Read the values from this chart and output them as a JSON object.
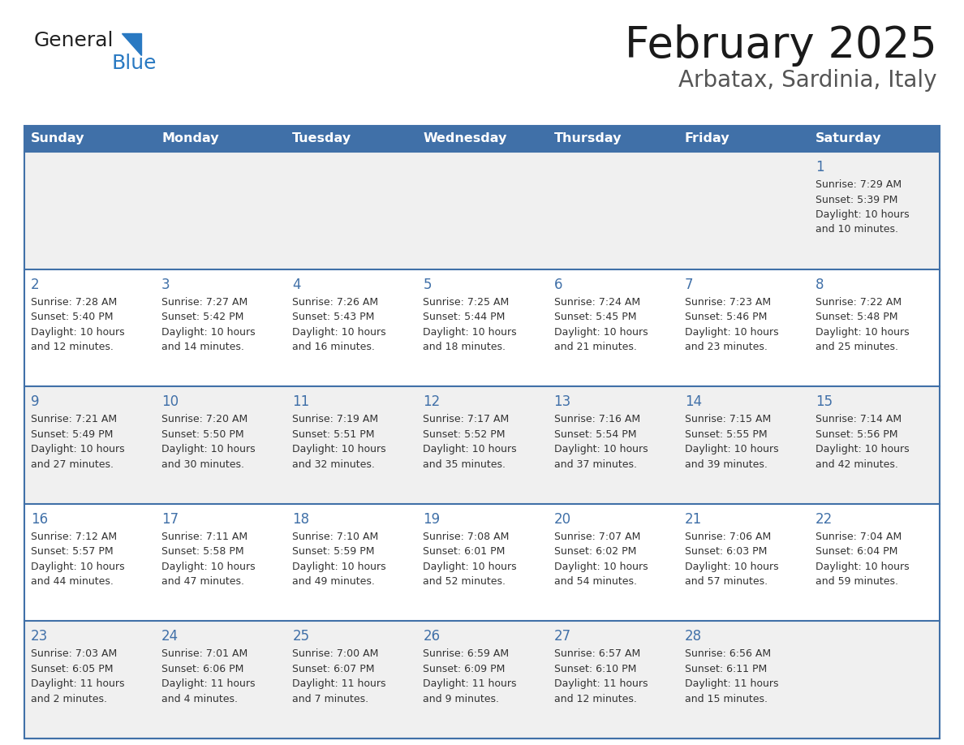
{
  "title": "February 2025",
  "subtitle": "Arbatax, Sardinia, Italy",
  "header_bg": "#4070A8",
  "header_text_color": "#FFFFFF",
  "day_headers": [
    "Sunday",
    "Monday",
    "Tuesday",
    "Wednesday",
    "Thursday",
    "Friday",
    "Saturday"
  ],
  "row_bg_odd": "#F0F0F0",
  "row_bg_even": "#FFFFFF",
  "border_color": "#4070A8",
  "text_color": "#333333",
  "num_color": "#4070A8",
  "days": [
    {
      "day": 1,
      "col": 6,
      "row": 0,
      "sunrise": "7:29 AM",
      "sunset": "5:39 PM",
      "daylight_hours": 10,
      "daylight_minutes": 10
    },
    {
      "day": 2,
      "col": 0,
      "row": 1,
      "sunrise": "7:28 AM",
      "sunset": "5:40 PM",
      "daylight_hours": 10,
      "daylight_minutes": 12
    },
    {
      "day": 3,
      "col": 1,
      "row": 1,
      "sunrise": "7:27 AM",
      "sunset": "5:42 PM",
      "daylight_hours": 10,
      "daylight_minutes": 14
    },
    {
      "day": 4,
      "col": 2,
      "row": 1,
      "sunrise": "7:26 AM",
      "sunset": "5:43 PM",
      "daylight_hours": 10,
      "daylight_minutes": 16
    },
    {
      "day": 5,
      "col": 3,
      "row": 1,
      "sunrise": "7:25 AM",
      "sunset": "5:44 PM",
      "daylight_hours": 10,
      "daylight_minutes": 18
    },
    {
      "day": 6,
      "col": 4,
      "row": 1,
      "sunrise": "7:24 AM",
      "sunset": "5:45 PM",
      "daylight_hours": 10,
      "daylight_minutes": 21
    },
    {
      "day": 7,
      "col": 5,
      "row": 1,
      "sunrise": "7:23 AM",
      "sunset": "5:46 PM",
      "daylight_hours": 10,
      "daylight_minutes": 23
    },
    {
      "day": 8,
      "col": 6,
      "row": 1,
      "sunrise": "7:22 AM",
      "sunset": "5:48 PM",
      "daylight_hours": 10,
      "daylight_minutes": 25
    },
    {
      "day": 9,
      "col": 0,
      "row": 2,
      "sunrise": "7:21 AM",
      "sunset": "5:49 PM",
      "daylight_hours": 10,
      "daylight_minutes": 27
    },
    {
      "day": 10,
      "col": 1,
      "row": 2,
      "sunrise": "7:20 AM",
      "sunset": "5:50 PM",
      "daylight_hours": 10,
      "daylight_minutes": 30
    },
    {
      "day": 11,
      "col": 2,
      "row": 2,
      "sunrise": "7:19 AM",
      "sunset": "5:51 PM",
      "daylight_hours": 10,
      "daylight_minutes": 32
    },
    {
      "day": 12,
      "col": 3,
      "row": 2,
      "sunrise": "7:17 AM",
      "sunset": "5:52 PM",
      "daylight_hours": 10,
      "daylight_minutes": 35
    },
    {
      "day": 13,
      "col": 4,
      "row": 2,
      "sunrise": "7:16 AM",
      "sunset": "5:54 PM",
      "daylight_hours": 10,
      "daylight_minutes": 37
    },
    {
      "day": 14,
      "col": 5,
      "row": 2,
      "sunrise": "7:15 AM",
      "sunset": "5:55 PM",
      "daylight_hours": 10,
      "daylight_minutes": 39
    },
    {
      "day": 15,
      "col": 6,
      "row": 2,
      "sunrise": "7:14 AM",
      "sunset": "5:56 PM",
      "daylight_hours": 10,
      "daylight_minutes": 42
    },
    {
      "day": 16,
      "col": 0,
      "row": 3,
      "sunrise": "7:12 AM",
      "sunset": "5:57 PM",
      "daylight_hours": 10,
      "daylight_minutes": 44
    },
    {
      "day": 17,
      "col": 1,
      "row": 3,
      "sunrise": "7:11 AM",
      "sunset": "5:58 PM",
      "daylight_hours": 10,
      "daylight_minutes": 47
    },
    {
      "day": 18,
      "col": 2,
      "row": 3,
      "sunrise": "7:10 AM",
      "sunset": "5:59 PM",
      "daylight_hours": 10,
      "daylight_minutes": 49
    },
    {
      "day": 19,
      "col": 3,
      "row": 3,
      "sunrise": "7:08 AM",
      "sunset": "6:01 PM",
      "daylight_hours": 10,
      "daylight_minutes": 52
    },
    {
      "day": 20,
      "col": 4,
      "row": 3,
      "sunrise": "7:07 AM",
      "sunset": "6:02 PM",
      "daylight_hours": 10,
      "daylight_minutes": 54
    },
    {
      "day": 21,
      "col": 5,
      "row": 3,
      "sunrise": "7:06 AM",
      "sunset": "6:03 PM",
      "daylight_hours": 10,
      "daylight_minutes": 57
    },
    {
      "day": 22,
      "col": 6,
      "row": 3,
      "sunrise": "7:04 AM",
      "sunset": "6:04 PM",
      "daylight_hours": 10,
      "daylight_minutes": 59
    },
    {
      "day": 23,
      "col": 0,
      "row": 4,
      "sunrise": "7:03 AM",
      "sunset": "6:05 PM",
      "daylight_hours": 11,
      "daylight_minutes": 2
    },
    {
      "day": 24,
      "col": 1,
      "row": 4,
      "sunrise": "7:01 AM",
      "sunset": "6:06 PM",
      "daylight_hours": 11,
      "daylight_minutes": 4
    },
    {
      "day": 25,
      "col": 2,
      "row": 4,
      "sunrise": "7:00 AM",
      "sunset": "6:07 PM",
      "daylight_hours": 11,
      "daylight_minutes": 7
    },
    {
      "day": 26,
      "col": 3,
      "row": 4,
      "sunrise": "6:59 AM",
      "sunset": "6:09 PM",
      "daylight_hours": 11,
      "daylight_minutes": 9
    },
    {
      "day": 27,
      "col": 4,
      "row": 4,
      "sunrise": "6:57 AM",
      "sunset": "6:10 PM",
      "daylight_hours": 11,
      "daylight_minutes": 12
    },
    {
      "day": 28,
      "col": 5,
      "row": 4,
      "sunrise": "6:56 AM",
      "sunset": "6:11 PM",
      "daylight_hours": 11,
      "daylight_minutes": 15
    }
  ]
}
